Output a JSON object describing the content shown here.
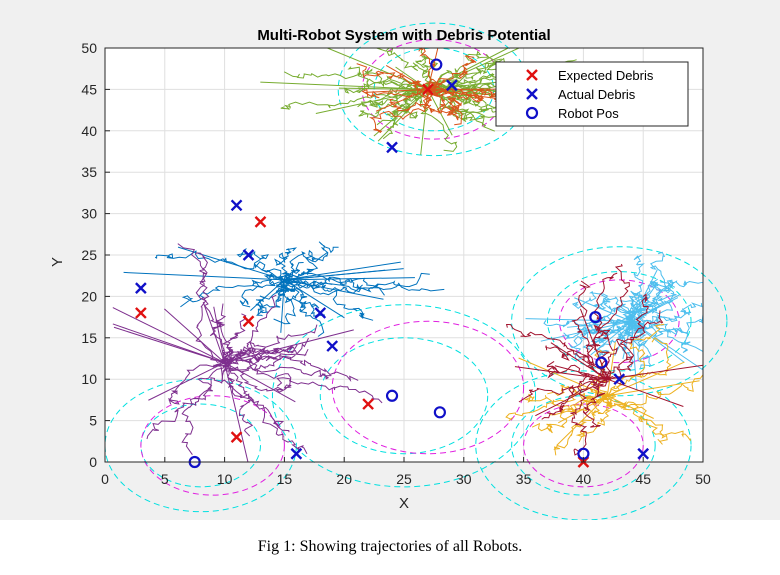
{
  "caption": "Fig 1: Showing trajectories of all Robots.",
  "chart_data": {
    "type": "scatter",
    "title": "Multi-Robot System with Debris Potential",
    "xlabel": "X",
    "ylabel": "Y",
    "xlim": [
      0,
      50
    ],
    "ylim": [
      0,
      50
    ],
    "xticks": [
      0,
      5,
      10,
      15,
      20,
      25,
      30,
      35,
      40,
      45,
      50
    ],
    "yticks": [
      0,
      5,
      10,
      15,
      20,
      25,
      30,
      35,
      40,
      45,
      50
    ],
    "grid": true,
    "legend_position": "top-right",
    "legend": [
      {
        "label": "Expected Debris",
        "marker": "x",
        "color": "#e01010"
      },
      {
        "label": "Actual Debris",
        "marker": "x",
        "color": "#1010c8"
      },
      {
        "label": "Robot Pos",
        "marker": "o",
        "color": "#1010c8"
      }
    ],
    "expected_debris": [
      {
        "x": 13,
        "y": 29
      },
      {
        "x": 3,
        "y": 18
      },
      {
        "x": 12,
        "y": 17
      },
      {
        "x": 11,
        "y": 3
      },
      {
        "x": 22,
        "y": 7
      },
      {
        "x": 40,
        "y": 0
      },
      {
        "x": 27,
        "y": 45
      }
    ],
    "actual_debris": [
      {
        "x": 11,
        "y": 31
      },
      {
        "x": 12,
        "y": 25
      },
      {
        "x": 3,
        "y": 21
      },
      {
        "x": 18,
        "y": 18
      },
      {
        "x": 19,
        "y": 14
      },
      {
        "x": 16,
        "y": 1
      },
      {
        "x": 24,
        "y": 38
      },
      {
        "x": 43,
        "y": 10
      },
      {
        "x": 45,
        "y": 1
      },
      {
        "x": 29,
        "y": 45.5
      }
    ],
    "robot_pos": [
      {
        "x": 7.5,
        "y": 0
      },
      {
        "x": 24,
        "y": 8
      },
      {
        "x": 28,
        "y": 6
      },
      {
        "x": 41,
        "y": 17.5
      },
      {
        "x": 41.5,
        "y": 12
      },
      {
        "x": 27.7,
        "y": 48
      },
      {
        "x": 40,
        "y": 1
      }
    ],
    "trajectory_groups": [
      {
        "color": "#77ac30",
        "center": [
          27,
          45
        ],
        "spread": [
          10,
          6
        ],
        "lines": 45
      },
      {
        "color": "#d95319",
        "center": [
          27,
          45
        ],
        "spread": [
          6,
          5
        ],
        "lines": 18
      },
      {
        "color": "#0072bd",
        "center": [
          15,
          22
        ],
        "spread": [
          10,
          5
        ],
        "lines": 28
      },
      {
        "color": "#7e2f8e",
        "center": [
          10,
          12
        ],
        "spread": [
          10,
          10
        ],
        "lines": 30
      },
      {
        "color": "#4dbeee",
        "center": [
          44,
          17
        ],
        "spread": [
          6,
          6
        ],
        "lines": 40
      },
      {
        "color": "#edb120",
        "center": [
          42,
          8
        ],
        "spread": [
          8,
          7
        ],
        "lines": 20
      },
      {
        "color": "#a2142f",
        "center": [
          42,
          10
        ],
        "spread": [
          8,
          10
        ],
        "lines": 20
      }
    ],
    "potential_circles": [
      {
        "cx": 27.5,
        "cy": 45,
        "radii": [
          5,
          8
        ],
        "color": "#00e0e0"
      },
      {
        "cx": 27.5,
        "cy": 45,
        "radii": [
          6
        ],
        "color": "#e020e0"
      },
      {
        "cx": 25,
        "cy": 8,
        "radii": [
          7,
          11
        ],
        "color": "#00e0e0"
      },
      {
        "cx": 27,
        "cy": 9,
        "radii": [
          8
        ],
        "color": "#e020e0"
      },
      {
        "cx": 8,
        "cy": 2,
        "radii": [
          5,
          8
        ],
        "color": "#00e0e0"
      },
      {
        "cx": 9,
        "cy": 2,
        "radii": [
          6
        ],
        "color": "#e020e0"
      },
      {
        "cx": 43,
        "cy": 17,
        "radii": [
          6,
          9
        ],
        "color": "#00e0e0"
      },
      {
        "cx": 43,
        "cy": 17,
        "radii": [
          5
        ],
        "color": "#e020e0"
      },
      {
        "cx": 40,
        "cy": 2,
        "radii": [
          6,
          9
        ],
        "color": "#00e0e0"
      },
      {
        "cx": 40,
        "cy": 2,
        "radii": [
          5
        ],
        "color": "#e020e0"
      }
    ]
  }
}
